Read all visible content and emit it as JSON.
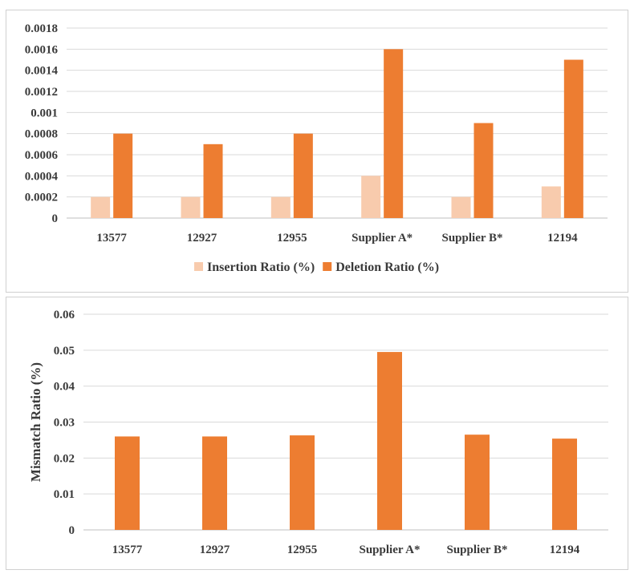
{
  "colors": {
    "insertion": "#f8cbad",
    "deletion": "#ed7d31",
    "mismatch": "#ed7d31",
    "grid": "#d9d9d9",
    "text": "#3a3a3a"
  },
  "chart_data": [
    {
      "type": "bar",
      "title": "",
      "xlabel": "",
      "ylabel": "",
      "categories": [
        "13577",
        "12927",
        "12955",
        "Supplier A*",
        "Supplier B*",
        "12194"
      ],
      "ylim": [
        0,
        0.0018
      ],
      "yticks": [
        "0",
        "0.0002",
        "0.0004",
        "0.0006",
        "0.0008",
        "0.001",
        "0.0012",
        "0.0014",
        "0.0016",
        "0.0018"
      ],
      "grid": true,
      "legend_position": "bottom",
      "series": [
        {
          "name": "Insertion Ratio (%)",
          "values": [
            0.0002,
            0.0002,
            0.0002,
            0.0004,
            0.0002,
            0.0003
          ]
        },
        {
          "name": "Deletion Ratio (%)",
          "values": [
            0.0008,
            0.0007,
            0.0008,
            0.0016,
            0.0009,
            0.0015
          ]
        }
      ]
    },
    {
      "type": "bar",
      "title": "",
      "xlabel": "",
      "ylabel": "Mismatch Ratio (%)",
      "categories": [
        "13577",
        "12927",
        "12955",
        "Supplier A*",
        "Supplier B*",
        "12194"
      ],
      "ylim": [
        0,
        0.06
      ],
      "yticks": [
        "0",
        "0.01",
        "0.02",
        "0.03",
        "0.04",
        "0.05",
        "0.06"
      ],
      "grid": true,
      "series": [
        {
          "values": [
            0.026,
            0.026,
            0.0263,
            0.0495,
            0.0265,
            0.0254
          ]
        }
      ]
    }
  ]
}
